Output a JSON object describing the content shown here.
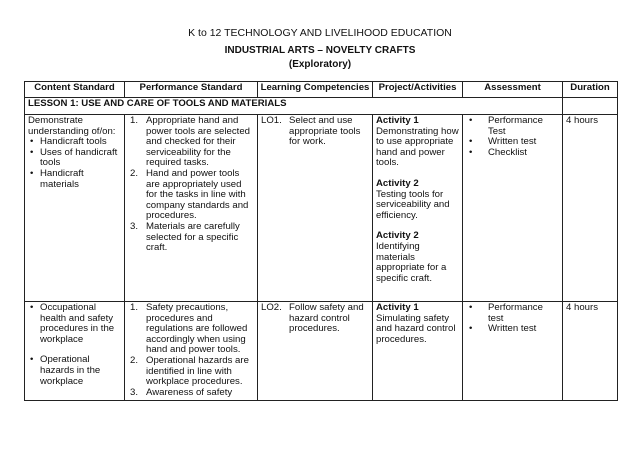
{
  "header": {
    "line1": "K to 12 TECHNOLOGY AND LIVELIHOOD EDUCATION",
    "line2": "INDUSTRIAL ARTS – NOVELTY CRAFTS",
    "line3": "(Exploratory)"
  },
  "columns": [
    "Content Standard",
    "Performance Standard",
    "Learning Competencies",
    "Project/Activities",
    "Assessment",
    "Duration"
  ],
  "lesson": "LESSON 1: USE AND CARE OF TOOLS AND MATERIALS",
  "rows": [
    {
      "content_intro": "Demonstrate understanding of/on:",
      "content_items": [
        "Handicraft tools",
        "Uses of handicraft tools",
        "Handicraft materials"
      ],
      "performance": [
        {
          "n": "1.",
          "text": "Appropriate hand and power tools are selected and checked for their serviceability for the required tasks."
        },
        {
          "n": "2.",
          "text": "Hand and power tools are appropriately used for the tasks in line with company standards and procedures."
        },
        {
          "n": "3.",
          "text": "Materials are carefully selected for a specific craft."
        }
      ],
      "competency": {
        "code": "LO1.",
        "text": "Select and use appropriate tools for work."
      },
      "activities": [
        {
          "title": "Activity 1",
          "text": "Demonstrating how to use appropriate hand and power tools."
        },
        {
          "title": "Activity 2",
          "text": "Testing tools for serviceability and efficiency."
        },
        {
          "title": "Activity 2",
          "text": "Identifying materials appropriate for a specific craft."
        }
      ],
      "assessment": [
        "Performance Test",
        "Written test",
        "Checklist"
      ],
      "duration": "4 hours"
    },
    {
      "content_items": [
        "Occupational health and safety procedures in the workplace",
        "Operational hazards in the workplace"
      ],
      "performance": [
        {
          "n": "1.",
          "text": "Safety precautions, procedures and regulations are followed accordingly when using hand and power tools."
        },
        {
          "n": "2.",
          "text": "Operational hazards are identified in line with workplace procedures."
        },
        {
          "n": "3.",
          "text": "Awareness of safety"
        }
      ],
      "competency": {
        "code": "LO2.",
        "text": "Follow safety and hazard control procedures."
      },
      "activities": [
        {
          "title": "Activity 1",
          "text": "Simulating safety and hazard control procedures."
        }
      ],
      "assessment": [
        "Performance test",
        "Written test"
      ],
      "duration": "4 hours"
    }
  ]
}
